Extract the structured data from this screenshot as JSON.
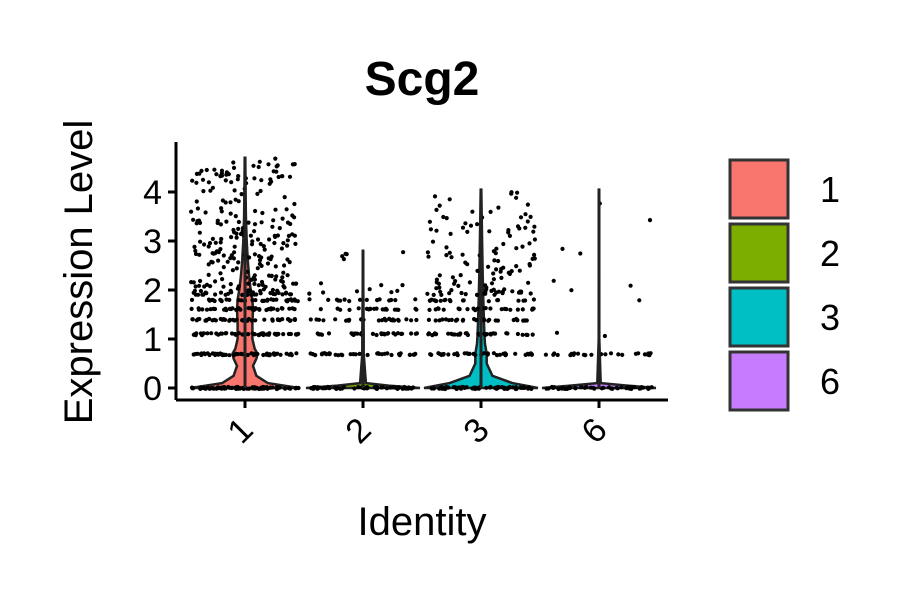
{
  "chart_data": {
    "type": "violin",
    "title": "Scg2",
    "xlabel": "Identity",
    "ylabel": "Expression Level",
    "categories": [
      "1",
      "2",
      "3",
      "6"
    ],
    "ylim": [
      -0.25,
      5.0
    ],
    "yticks": [
      0,
      1,
      2,
      3,
      4
    ],
    "max_values": [
      4.7,
      2.8,
      4.05,
      4.05
    ],
    "colors": {
      "1": "#F8766D",
      "2": "#7CAE00",
      "3": "#00BFC4",
      "6": "#C77CFF"
    },
    "violins": [
      {
        "category": "1",
        "profile": [
          [
            0,
            0.95
          ],
          [
            0.1,
            0.4
          ],
          [
            0.25,
            0.2
          ],
          [
            0.45,
            0.14
          ],
          [
            0.6,
            0.2
          ],
          [
            0.7,
            0.22
          ],
          [
            0.8,
            0.17
          ],
          [
            1.0,
            0.13
          ],
          [
            1.3,
            0.13
          ],
          [
            1.6,
            0.14
          ],
          [
            1.8,
            0.13
          ],
          [
            2.0,
            0.1
          ],
          [
            2.3,
            0.07
          ],
          [
            2.6,
            0.05
          ],
          [
            3.0,
            0.03
          ],
          [
            3.5,
            0.015
          ],
          [
            4.0,
            0.01
          ],
          [
            4.7,
            0.005
          ]
        ]
      },
      {
        "category": "2",
        "profile": [
          [
            0,
            1.0
          ],
          [
            0.05,
            0.45
          ],
          [
            0.1,
            0.05
          ],
          [
            0.7,
            0.012
          ],
          [
            1.1,
            0.012
          ],
          [
            2.0,
            0.006
          ],
          [
            2.8,
            0.004
          ]
        ]
      },
      {
        "category": "3",
        "profile": [
          [
            0,
            1.0
          ],
          [
            0.1,
            0.55
          ],
          [
            0.25,
            0.2
          ],
          [
            0.5,
            0.1
          ],
          [
            0.7,
            0.1
          ],
          [
            0.9,
            0.07
          ],
          [
            1.1,
            0.06
          ],
          [
            1.4,
            0.05
          ],
          [
            1.8,
            0.04
          ],
          [
            2.3,
            0.03
          ],
          [
            3.0,
            0.02
          ],
          [
            4.05,
            0.005
          ]
        ]
      },
      {
        "category": "6",
        "profile": [
          [
            0,
            1.0
          ],
          [
            0.05,
            0.5
          ],
          [
            0.1,
            0.03
          ],
          [
            1.0,
            0.006
          ],
          [
            4.05,
            0.004
          ]
        ]
      }
    ],
    "legend": {
      "position": "right",
      "entries": [
        "1",
        "2",
        "3",
        "6"
      ]
    }
  }
}
